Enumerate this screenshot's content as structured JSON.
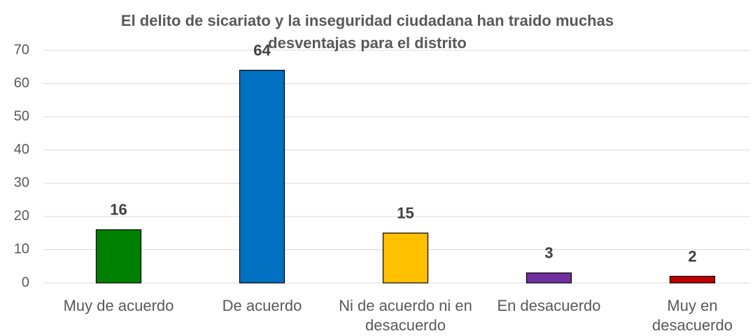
{
  "chart_data": {
    "type": "bar",
    "title": "El delito de sicariato y la inseguridad ciudadana han traido muchas desventajas para el distrito",
    "categories": [
      "Muy de acuerdo",
      "De acuerdo",
      "Ni de acuerdo ni en desacuerdo",
      "En desacuerdo",
      "Muy en desacuerdo"
    ],
    "values": [
      16,
      64,
      15,
      3,
      2
    ],
    "colors": [
      "#008000",
      "#0070c0",
      "#ffc000",
      "#7030a0",
      "#c00000"
    ],
    "ylim": [
      0,
      70
    ],
    "yticks": [
      0,
      10,
      20,
      30,
      40,
      50,
      60,
      70
    ],
    "grid": true
  }
}
